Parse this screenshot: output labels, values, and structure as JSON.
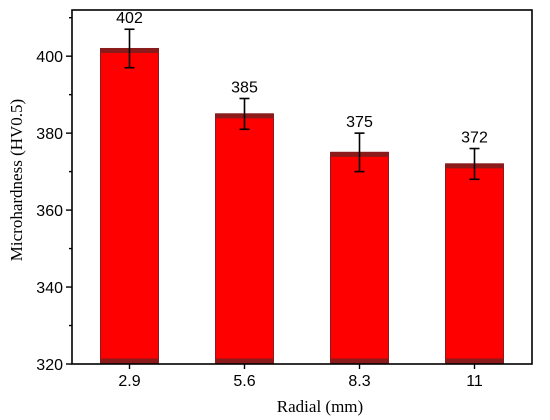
{
  "chart_data": {
    "type": "bar",
    "categories": [
      "2.9",
      "5.6",
      "8.3",
      "11"
    ],
    "values": [
      402,
      385,
      375,
      372
    ],
    "errors": [
      5,
      4,
      5,
      4
    ],
    "data_labels": [
      "402",
      "385",
      "375",
      "372"
    ],
    "xlabel": "Radial (mm)",
    "ylabel": "Microhardness (HV0.5)",
    "ylim": [
      320,
      412
    ],
    "yticks": [
      320,
      340,
      360,
      380,
      400
    ],
    "grid": false,
    "bar_color": "#ff0000",
    "bar_edge_color": "#8b1a1a",
    "error_color": "#000000"
  }
}
